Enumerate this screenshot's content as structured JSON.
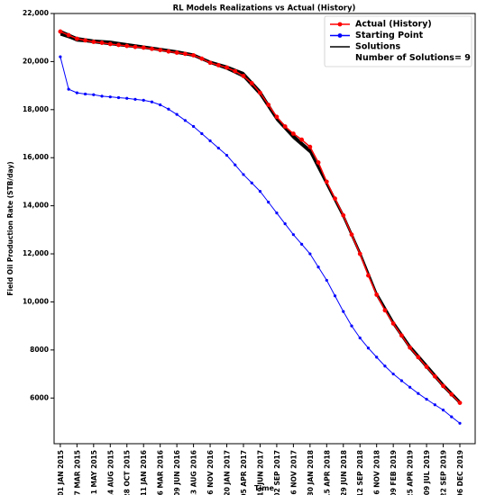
{
  "chart_data": {
    "type": "line",
    "title": "RL Models Realizations vs Actual (History)",
    "xlabel": "Time",
    "ylabel": "Field Oil Production Rate (STB/day)",
    "legend": "upper right",
    "legend_note": "Number of Solutions= 9",
    "xlim": [
      -28,
      1869
    ],
    "ylim": [
      4100,
      22000
    ],
    "xticks": [
      {
        "value": 0,
        "label": "01 JAN 2015"
      },
      {
        "value": 75,
        "label": "17 MAR 2015"
      },
      {
        "value": 150,
        "label": "31 MAY 2015"
      },
      {
        "value": 225,
        "label": "14 AUG 2015"
      },
      {
        "value": 300,
        "label": "28 OCT 2015"
      },
      {
        "value": 375,
        "label": "11 JAN 2016"
      },
      {
        "value": 450,
        "label": "26 MAR 2016"
      },
      {
        "value": 525,
        "label": "09 JUN 2016"
      },
      {
        "value": 600,
        "label": "23 AUG 2016"
      },
      {
        "value": 675,
        "label": "06 NOV 2016"
      },
      {
        "value": 750,
        "label": "20 JAN 2017"
      },
      {
        "value": 825,
        "label": "05 APR 2017"
      },
      {
        "value": 900,
        "label": "19 JUN 2017"
      },
      {
        "value": 975,
        "label": "02 SEP 2017"
      },
      {
        "value": 1050,
        "label": "16 NOV 2017"
      },
      {
        "value": 1125,
        "label": "30 JAN 2018"
      },
      {
        "value": 1200,
        "label": "15 APR 2018"
      },
      {
        "value": 1275,
        "label": "29 JUN 2018"
      },
      {
        "value": 1350,
        "label": "12 SEP 2018"
      },
      {
        "value": 1425,
        "label": "26 NOV 2018"
      },
      {
        "value": 1500,
        "label": "09 FEB 2019"
      },
      {
        "value": 1575,
        "label": "25 APR 2019"
      },
      {
        "value": 1650,
        "label": "09 JUL 2019"
      },
      {
        "value": 1725,
        "label": "22 SEP 2019"
      },
      {
        "value": 1800,
        "label": "06 DEC 2019"
      }
    ],
    "yticks": [
      6000,
      8000,
      {
        "value": 10000,
        "label": "10,000"
      },
      {
        "value": 12000,
        "label": "12,000"
      },
      {
        "value": 14000,
        "label": "14,000"
      },
      {
        "value": 16000,
        "label": "16,000"
      },
      {
        "value": 18000,
        "label": "18,000"
      },
      {
        "value": 20000,
        "label": "20,000"
      },
      {
        "value": 22000,
        "label": "22,000"
      }
    ],
    "x": [
      0,
      37.5,
      75,
      112.5,
      150,
      187.5,
      225,
      262.5,
      300,
      337.5,
      375,
      412.5,
      450,
      487.5,
      525,
      562.5,
      600,
      637.5,
      675,
      712.5,
      750,
      787.5,
      825,
      862.5,
      900,
      937.5,
      975,
      1012.5,
      1050,
      1087.5,
      1125,
      1162.5,
      1200,
      1237.5,
      1275,
      1312.5,
      1350,
      1387.5,
      1425,
      1462.5,
      1500,
      1537.5,
      1575,
      1612.5,
      1650,
      1687.5,
      1725,
      1762.5,
      1800
    ],
    "series": [
      {
        "name": "Actual (History)",
        "color": "#ff0000",
        "marker": true,
        "values": [
          21250,
          21100,
          20950,
          20880,
          20820,
          20780,
          20730,
          20690,
          20650,
          20610,
          20580,
          20530,
          20480,
          20420,
          20370,
          20320,
          20260,
          20120,
          19950,
          19850,
          19750,
          19600,
          19400,
          19100,
          18700,
          18200,
          17700,
          17300,
          17000,
          16750,
          16450,
          15800,
          15000,
          14300,
          13600,
          12800,
          12000,
          11100,
          10300,
          9650,
          9100,
          8600,
          8100,
          7700,
          7300,
          6900,
          6500,
          6150,
          5800
        ]
      },
      {
        "name": "Starting Point",
        "color": "#0000ff",
        "marker": true,
        "values": [
          20200,
          18850,
          18700,
          18650,
          18620,
          18560,
          18530,
          18500,
          18470,
          18430,
          18390,
          18320,
          18200,
          18020,
          17800,
          17550,
          17300,
          17000,
          16700,
          16400,
          16100,
          15700,
          15300,
          14950,
          14600,
          14150,
          13700,
          13250,
          12800,
          12400,
          12000,
          11450,
          10900,
          10250,
          9600,
          9000,
          8500,
          8080,
          7700,
          7330,
          7000,
          6720,
          6450,
          6190,
          5950,
          5720,
          5500,
          5220,
          4950
        ]
      },
      {
        "name": "Solutions",
        "color": "#000000",
        "marker": false,
        "x": [
          0,
          75,
          150,
          225,
          300,
          375,
          450,
          525,
          600,
          675,
          750,
          825,
          900,
          975,
          1050,
          1125,
          1200,
          1275,
          1350,
          1425,
          1500,
          1575,
          1650,
          1725,
          1800
        ],
        "values": [
          [
            21200,
            20900,
            20850,
            20800,
            20700,
            20600,
            20500,
            20400,
            20300,
            20000,
            19800,
            19500,
            18750,
            17650,
            16900,
            16300,
            14950,
            13600,
            12050,
            10350,
            9150,
            8150,
            7350,
            6550,
            5850
          ],
          [
            21150,
            20850,
            20800,
            20750,
            20680,
            20580,
            20480,
            20380,
            20250,
            19950,
            19720,
            19400,
            18650,
            17600,
            16850,
            16250,
            14900,
            13550,
            12000,
            10300,
            9100,
            8100,
            7300,
            6500,
            5800
          ],
          [
            21300,
            21000,
            20900,
            20850,
            20750,
            20650,
            20550,
            20450,
            20320,
            20020,
            19820,
            19550,
            18800,
            17700,
            16950,
            16350,
            15000,
            13650,
            12100,
            10400,
            9200,
            8200,
            7400,
            6600,
            5880
          ],
          [
            21100,
            20880,
            20780,
            20700,
            20620,
            20550,
            20450,
            20340,
            20220,
            19920,
            19680,
            19350,
            18600,
            17550,
            16800,
            16200,
            14850,
            13500,
            11950,
            10250,
            9050,
            8050,
            7250,
            6450,
            5760
          ],
          [
            21250,
            20950,
            20830,
            20760,
            20690,
            20610,
            20510,
            20410,
            20290,
            19980,
            19760,
            19450,
            18720,
            17680,
            16920,
            16320,
            14970,
            13620,
            12060,
            10340,
            9140,
            8140,
            7330,
            6530,
            5830
          ],
          [
            21200,
            20920,
            20870,
            20820,
            20720,
            20630,
            20530,
            20420,
            20300,
            20010,
            19790,
            19480,
            18700,
            17620,
            16880,
            16280,
            14930,
            13580,
            12020,
            10320,
            9120,
            8120,
            7320,
            6520,
            5810
          ],
          [
            21180,
            20900,
            20810,
            20740,
            20660,
            20590,
            20490,
            20390,
            20270,
            19960,
            19740,
            19420,
            18680,
            17640,
            16900,
            16310,
            14960,
            13610,
            12040,
            10330,
            9130,
            8130,
            7310,
            6510,
            5790
          ],
          [
            21220,
            20930,
            20840,
            20780,
            20700,
            20620,
            20520,
            20400,
            20280,
            19970,
            19770,
            19470,
            18730,
            17670,
            16930,
            16330,
            14980,
            13630,
            12070,
            10360,
            9160,
            8160,
            7340,
            6540,
            5840
          ],
          [
            21270,
            20970,
            20880,
            20830,
            20730,
            20640,
            20540,
            20430,
            20310,
            20000,
            19800,
            19520,
            18760,
            17690,
            16940,
            16340,
            14990,
            13640,
            12080,
            10370,
            9170,
            8170,
            7360,
            6560,
            5860
          ]
        ]
      }
    ]
  }
}
